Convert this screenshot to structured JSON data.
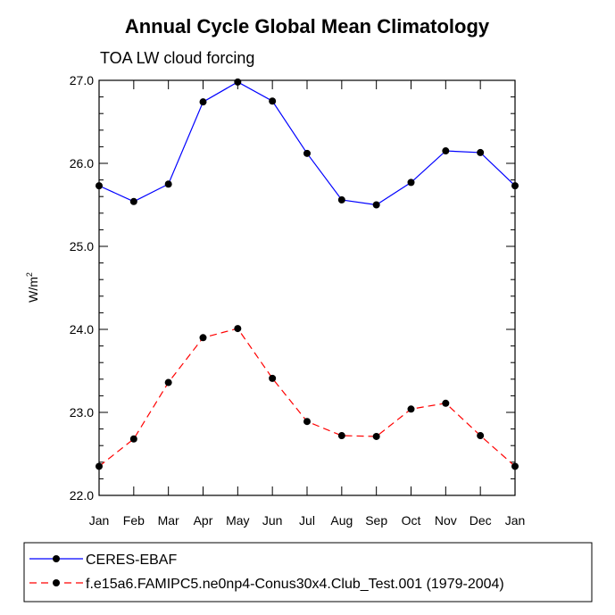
{
  "chart_data": {
    "type": "line",
    "title": "Annual Cycle Global Mean Climatology",
    "subtitle": "TOA LW cloud forcing",
    "ylabel": "W/m",
    "ylabel_superscript": "2",
    "xlabel": "",
    "categories": [
      "Jan",
      "Feb",
      "Mar",
      "Apr",
      "May",
      "Jun",
      "Jul",
      "Aug",
      "Sep",
      "Oct",
      "Nov",
      "Dec",
      "Jan"
    ],
    "ylim": [
      22.0,
      27.0
    ],
    "yticks": [
      22.0,
      23.0,
      24.0,
      25.0,
      26.0,
      27.0
    ],
    "ytick_labels": [
      "22.0",
      "23.0",
      "24.0",
      "25.0",
      "26.0",
      "27.0"
    ],
    "legend_position": "bottom",
    "series": [
      {
        "name": "CERES-EBAF",
        "color": "#0000ff",
        "dash": "solid",
        "marker_color": "#000000",
        "values": [
          25.73,
          25.54,
          25.75,
          26.74,
          26.98,
          26.75,
          26.12,
          25.56,
          25.5,
          25.77,
          26.15,
          26.13,
          25.73
        ]
      },
      {
        "name": "f.e15a6.FAMIPC5.ne0np4-Conus30x4.Club_Test.001 (1979-2004)",
        "color": "#ff0000",
        "dash": "dashed",
        "marker_color": "#000000",
        "values": [
          22.35,
          22.68,
          23.36,
          23.9,
          24.01,
          23.41,
          22.89,
          22.72,
          22.71,
          23.04,
          23.11,
          22.72,
          22.35
        ]
      }
    ]
  }
}
